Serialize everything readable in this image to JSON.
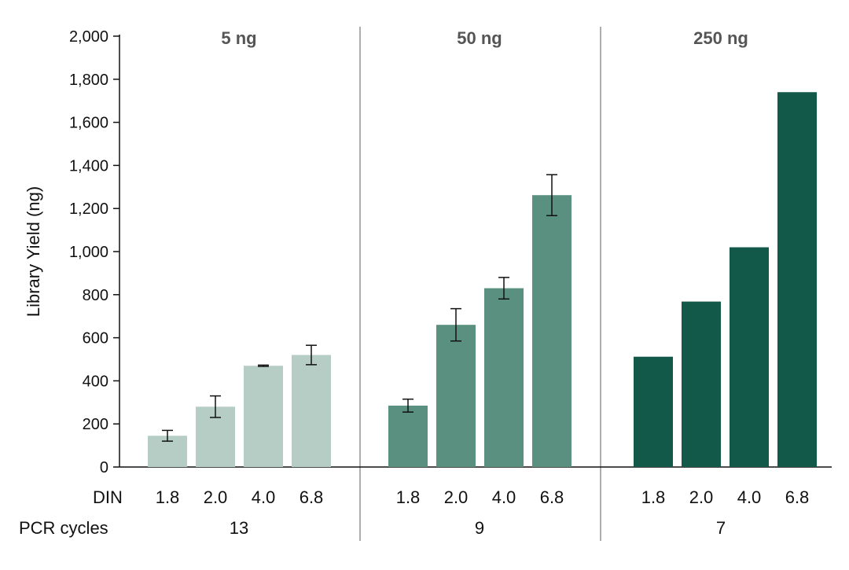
{
  "chart_data": {
    "type": "bar",
    "ylabel": "Library Yield (ng)",
    "ylim": [
      0,
      2000
    ],
    "yticks": [
      0,
      200,
      400,
      600,
      800,
      1000,
      1200,
      1400,
      1600,
      1800,
      2000
    ],
    "ytick_labels": [
      "0",
      "200",
      "400",
      "600",
      "800",
      "1,000",
      "1,200",
      "1,400",
      "1,600",
      "1,800",
      "2,000"
    ],
    "row_labels": {
      "din": "DIN",
      "pcr": "PCR cycles"
    },
    "groups": [
      {
        "title": "5 ng",
        "pcr_cycles": "13",
        "color": "#b5cdc4",
        "categories": [
          "1.8",
          "2.0",
          "4.0",
          "6.8"
        ],
        "values": [
          145,
          280,
          470,
          520
        ],
        "errors": [
          25,
          50,
          3,
          45
        ]
      },
      {
        "title": "50 ng",
        "pcr_cycles": "9",
        "color": "#5a9080",
        "categories": [
          "1.8",
          "2.0",
          "4.0",
          "6.8"
        ],
        "values": [
          285,
          660,
          830,
          1262
        ],
        "errors": [
          30,
          75,
          50,
          95
        ]
      },
      {
        "title": "250 ng",
        "pcr_cycles": "7",
        "color": "#12594a",
        "categories": [
          "1.8",
          "2.0",
          "4.0",
          "6.8"
        ],
        "values": [
          512,
          768,
          1020,
          1740
        ],
        "errors": [
          null,
          null,
          null,
          null
        ]
      }
    ]
  }
}
